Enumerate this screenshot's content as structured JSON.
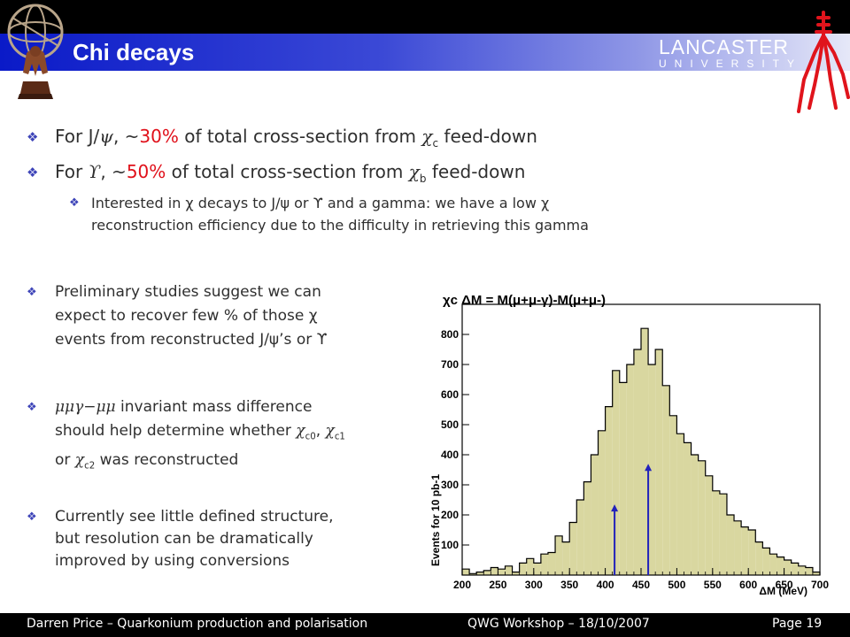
{
  "slide": {
    "title": "Chi decays",
    "brand": {
      "name": "LANCASTER",
      "sub": "UNIVERSITY"
    },
    "b1": {
      "pre": "For J/",
      "mid1": ", ~",
      "pct": "30%",
      "mid2": " of total cross-section from ",
      "sub": "c",
      "post": " feed-down"
    },
    "b2": {
      "pre": "For ",
      "mid1": ", ~",
      "pct": "50%",
      "mid2": " of total cross-section from ",
      "sub": "b",
      "post": " feed-down"
    },
    "b3": {
      "line1": "Interested in χ decays to J/ψ or ϒ and a gamma: we have a low χ",
      "line2": "reconstruction efficiency due to the difficulty in retrieving this gamma"
    },
    "b4": {
      "line1": "Preliminary studies suggest we can",
      "line2": "expect to recover few % of those χ",
      "line3": "events from reconstructed J/ψ’s or ϒ"
    },
    "b5": {
      "sym": "μμγ−μμ",
      "line1": " invariant mass difference",
      "line2a": "should help determine whether ",
      "c0": "c0",
      "c1": "c1",
      "line3a": "or ",
      "c2": "c2",
      "line3b": " was reconstructed"
    },
    "b6": {
      "line1": "Currently see little defined structure,",
      "line2": "but resolution can be dramatically",
      "line3": "improved by using conversions"
    },
    "footer": {
      "left": "Darren Price – Quarkonium production and polarisation",
      "mid": "QWG Workshop – 18/10/2007",
      "right": "Page 19"
    }
  },
  "chart_data": {
    "type": "bar",
    "title": "χc  ΔM = M(μ+μ-γ)-M(μ+μ-)",
    "xlabel": "ΔM (MeV)",
    "ylabel": "Events for 10 pb-1",
    "xlim": [
      200,
      700
    ],
    "ylim": [
      0,
      900
    ],
    "x_ticks": [
      200,
      250,
      300,
      350,
      400,
      450,
      500,
      550,
      600,
      650,
      700
    ],
    "y_ticks": [
      100,
      200,
      300,
      400,
      500,
      600,
      700,
      800
    ],
    "bin_width": 10,
    "bin_edges_start": [
      200,
      210,
      220,
      230,
      240,
      250,
      260,
      270,
      280,
      290,
      300,
      310,
      320,
      330,
      340,
      350,
      360,
      370,
      380,
      390,
      400,
      410,
      420,
      430,
      440,
      450,
      460,
      470,
      480,
      490,
      500,
      510,
      520,
      530,
      540,
      550,
      560,
      570,
      580,
      590,
      600,
      610,
      620,
      630,
      640,
      650,
      660,
      670,
      680,
      690
    ],
    "values": [
      20,
      5,
      10,
      15,
      25,
      20,
      30,
      10,
      40,
      55,
      40,
      70,
      75,
      130,
      110,
      175,
      250,
      310,
      400,
      480,
      560,
      680,
      640,
      700,
      750,
      820,
      700,
      750,
      630,
      530,
      470,
      440,
      400,
      380,
      330,
      280,
      270,
      200,
      180,
      160,
      150,
      110,
      90,
      70,
      60,
      50,
      40,
      30,
      25,
      10
    ],
    "fill_color": "#d9d7a0",
    "arrows": [
      {
        "x": 413,
        "y_tip": 235,
        "color": "#2222bb"
      },
      {
        "x": 460,
        "y_tip": 370,
        "color": "#2222bb"
      }
    ],
    "grid": false,
    "legend": "none"
  }
}
